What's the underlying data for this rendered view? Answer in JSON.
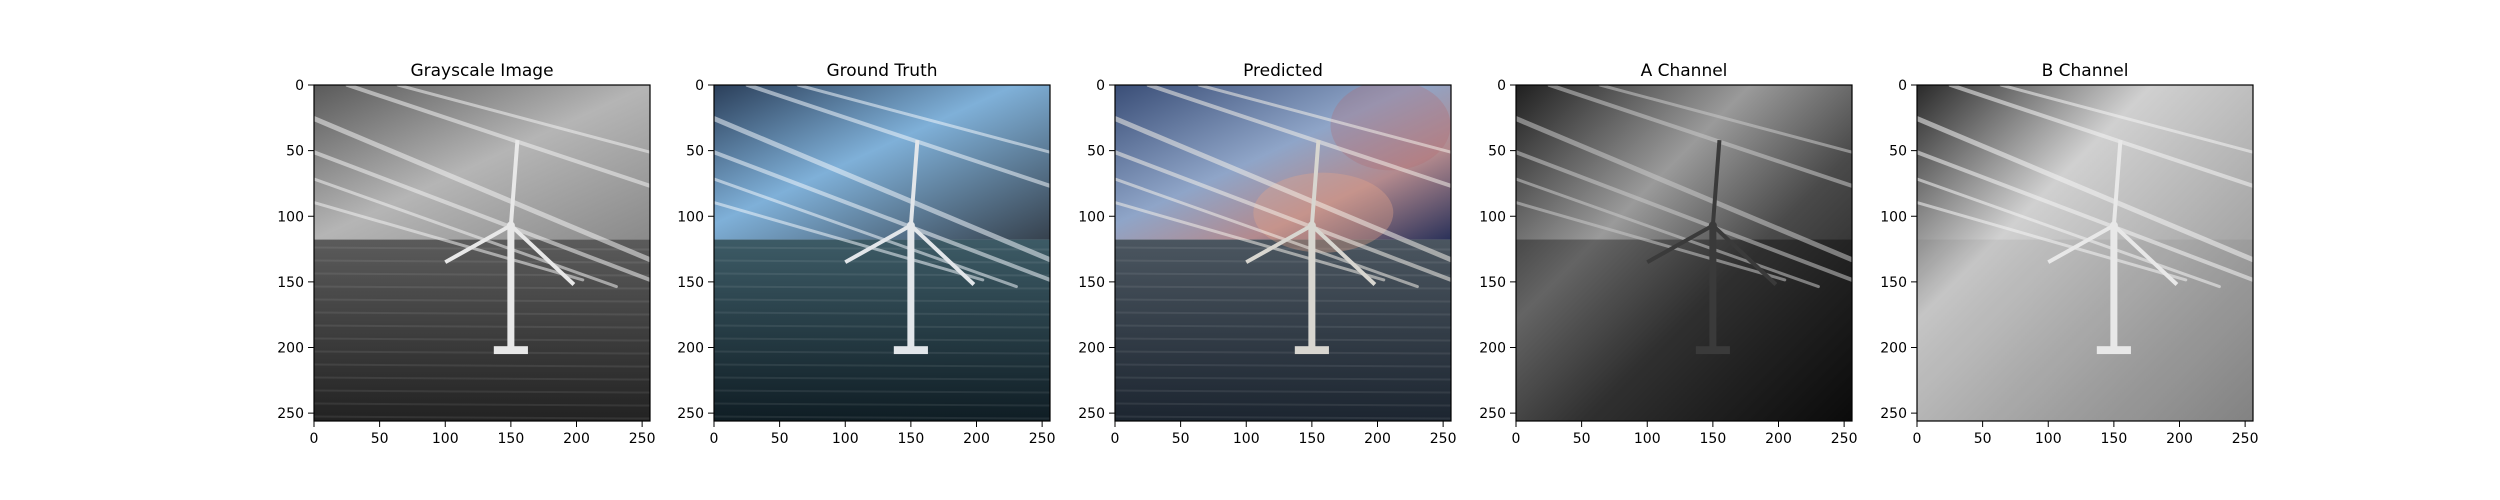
{
  "panels": [
    {
      "id": "gray",
      "title": "Grayscale Image",
      "icon": "wind-turbine-photo-grayscale"
    },
    {
      "id": "truth",
      "title": "Ground Truth",
      "icon": "wind-turbine-photo-color"
    },
    {
      "id": "pred",
      "title": "Predicted",
      "icon": "wind-turbine-photo-predicted"
    },
    {
      "id": "achan",
      "title": "A Channel",
      "icon": "a-channel-map"
    },
    {
      "id": "bchan",
      "title": "B Channel",
      "icon": "b-channel-map"
    }
  ],
  "axes": {
    "x_ticks": [
      "0",
      "50",
      "100",
      "150",
      "200",
      "250"
    ],
    "y_ticks": [
      "0",
      "50",
      "100",
      "150",
      "200",
      "250"
    ],
    "tick_values": [
      0,
      50,
      100,
      150,
      200,
      250
    ],
    "range": [
      0,
      256
    ]
  }
}
